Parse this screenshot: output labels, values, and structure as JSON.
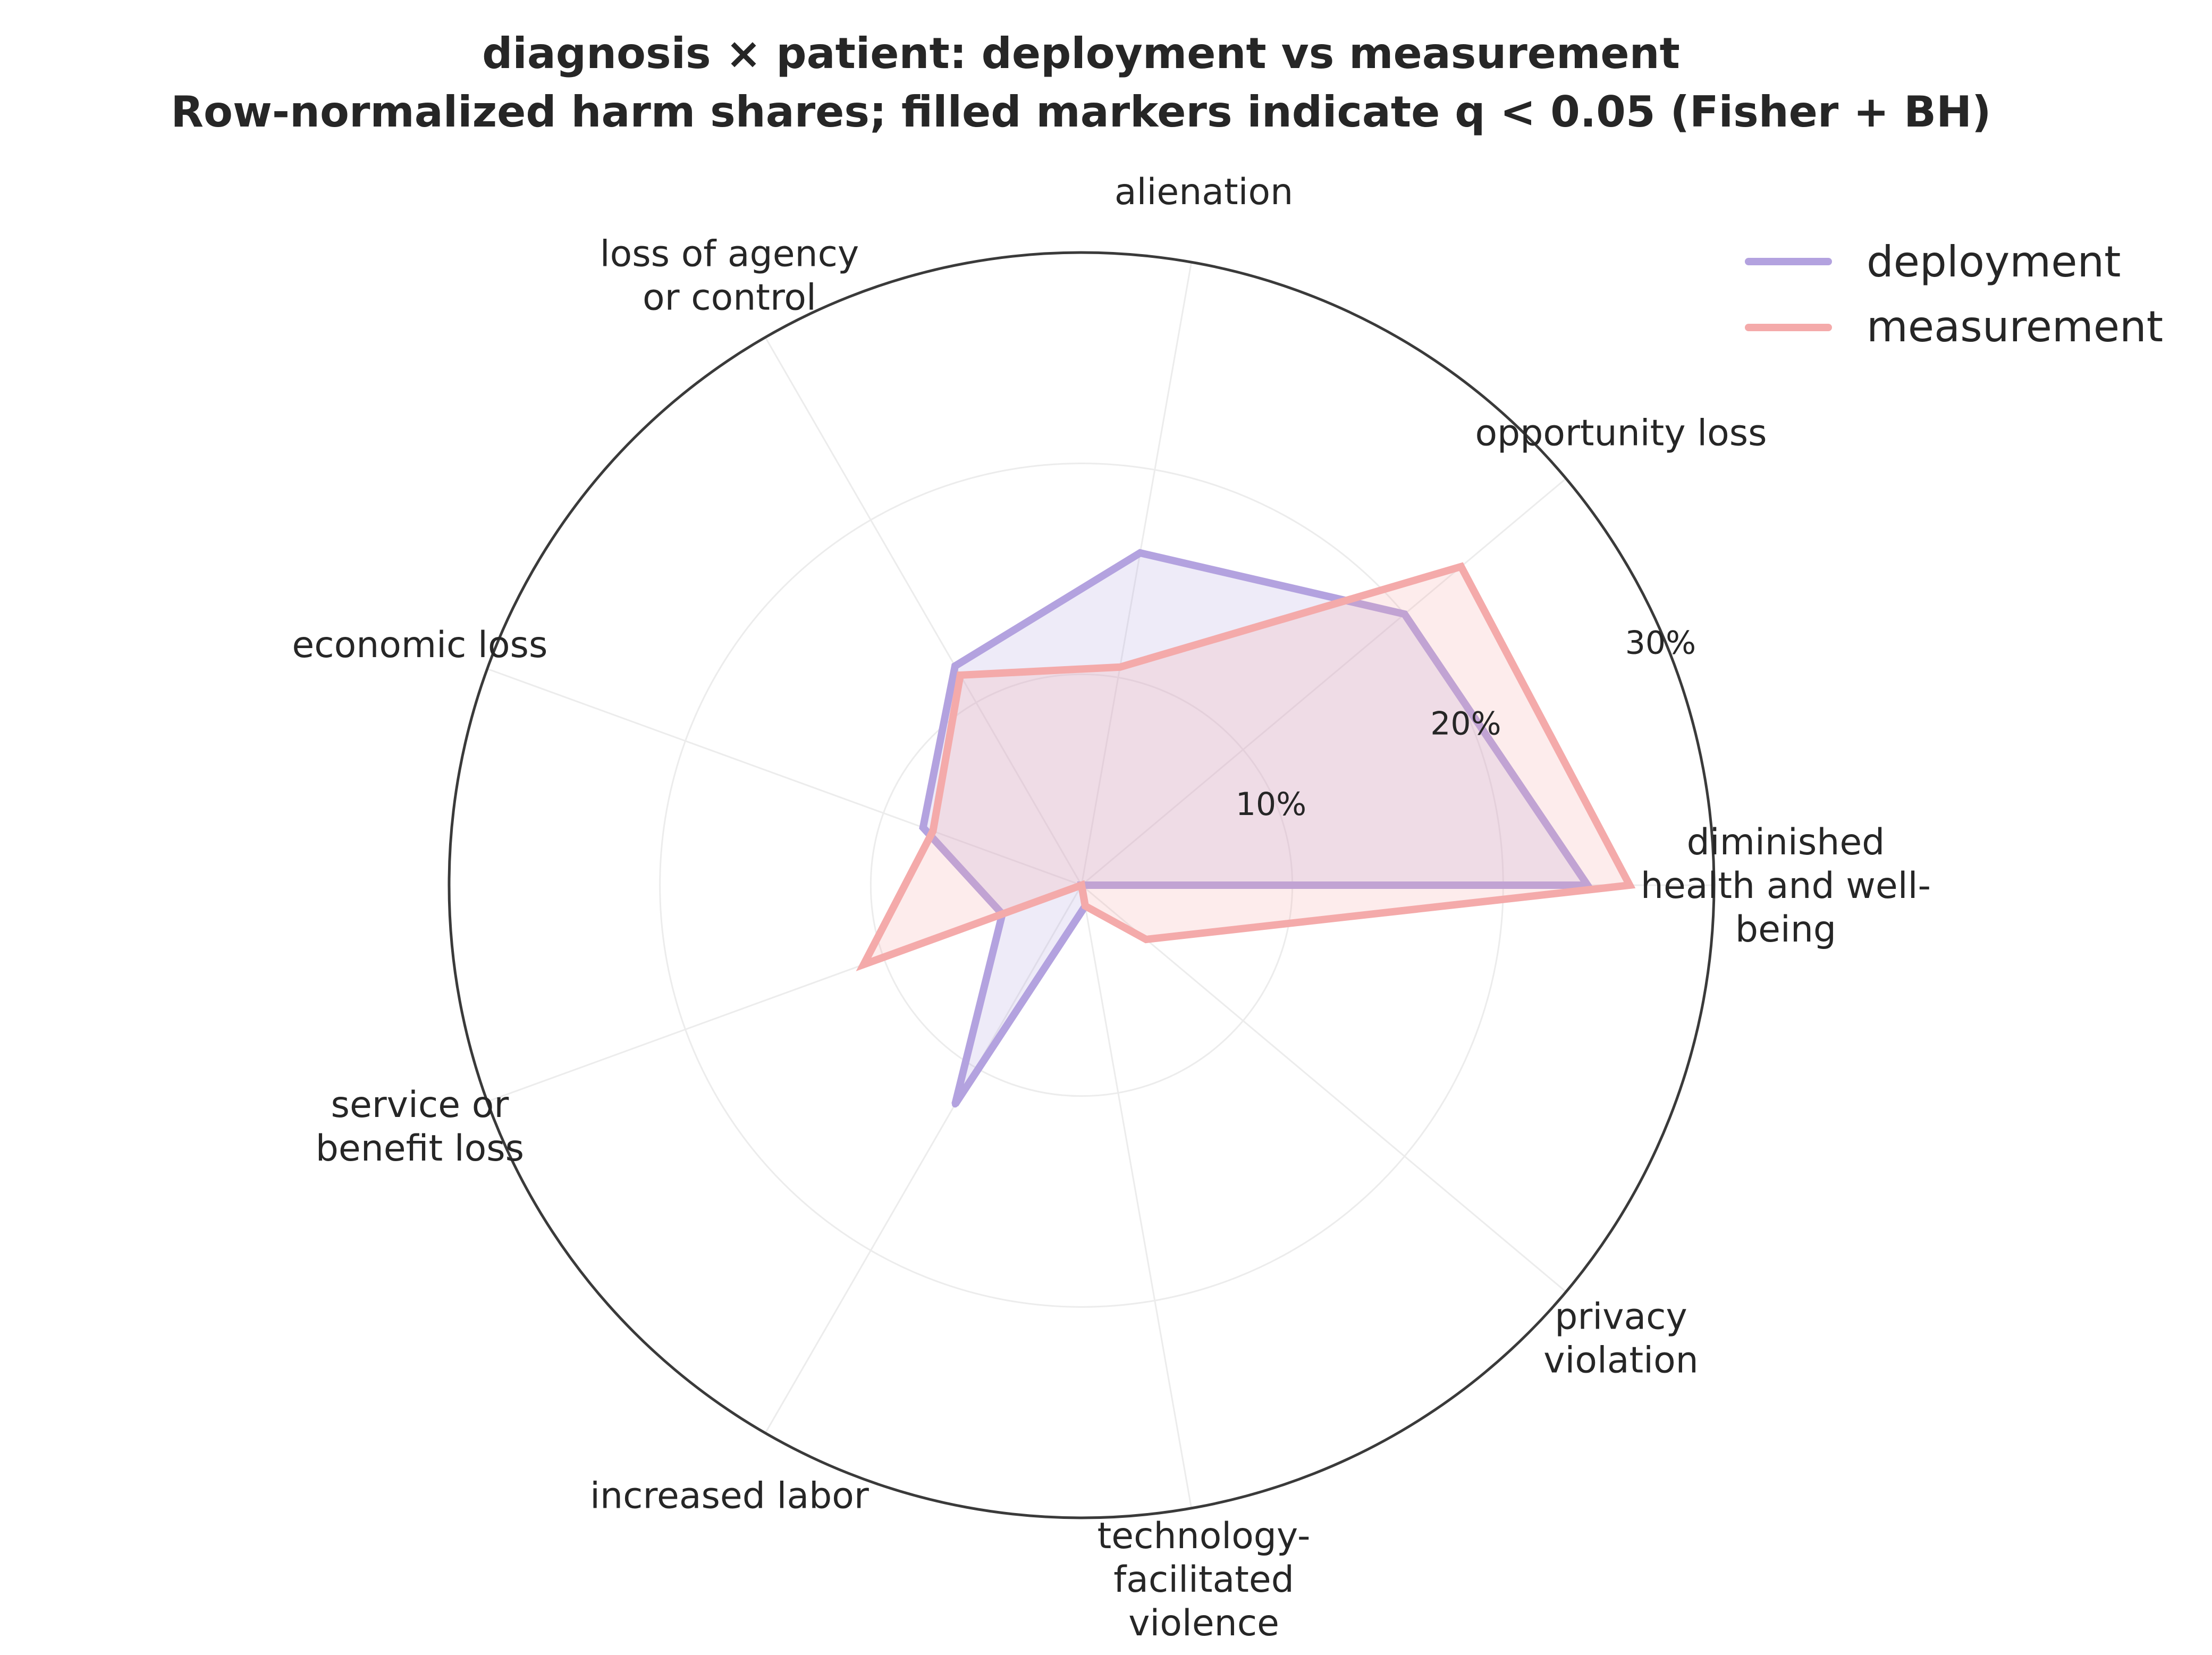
{
  "chart_data": {
    "type": "radar",
    "title": "diagnosis × patient: deployment vs measurement",
    "subtitle": "Row-normalized harm shares; filled markers indicate q < 0.05 (Fisher + BH)",
    "categories": [
      "diminished health and well-being",
      "opportunity loss",
      "alienation",
      "loss of agency or control",
      "economic loss",
      "service or benefit loss",
      "increased labor",
      "technology-facilitated violence",
      "privacy violation"
    ],
    "category_lines": [
      [
        "diminished",
        "health and well-",
        "being"
      ],
      [
        "opportunity loss"
      ],
      [
        "alienation"
      ],
      [
        "loss of agency",
        "or control"
      ],
      [
        "economic loss"
      ],
      [
        "service or",
        "benefit loss"
      ],
      [
        "increased labor"
      ],
      [
        "technology-",
        "facilitated",
        "violence"
      ],
      [
        "privacy",
        "violation"
      ]
    ],
    "series": [
      {
        "name": "deployment",
        "color": "#b3a2df",
        "values": [
          24,
          20,
          16,
          12,
          8,
          4,
          12,
          1,
          0
        ]
      },
      {
        "name": "measurement",
        "color": "#f4aaaa",
        "values": [
          26,
          23.5,
          10.5,
          11.5,
          7.5,
          11,
          0,
          1,
          4
        ]
      }
    ],
    "r_ticks": [
      10,
      20,
      30
    ],
    "r_tick_labels": [
      "10%",
      "20%",
      "30%"
    ],
    "rlim": [
      0,
      30
    ],
    "grid": true,
    "legend_position": "top-right"
  }
}
